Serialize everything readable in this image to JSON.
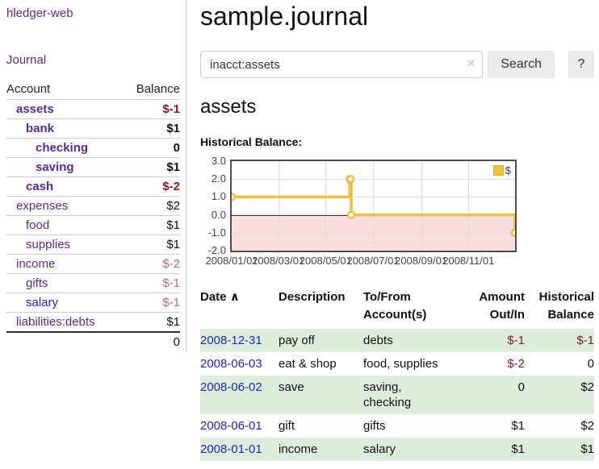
{
  "colors": {
    "accent_purple": "#522e91",
    "link_blue": "#2323cc",
    "negative_strong": "#8b1a1a",
    "negative_muted": "#b46f6f",
    "register_negative": "#7f1f1f",
    "row_green": "#ddeedd",
    "series_gold": "#edc240",
    "zero_line_red": "#8b0000",
    "negative_area_pink": "#fbdede"
  },
  "sidebar": {
    "app_title": "hledger-web",
    "journal_label": "Journal",
    "accounts_table": {
      "headers": {
        "account": "Account",
        "balance": "Balance"
      },
      "rows": [
        {
          "label": "assets",
          "level": 1,
          "bold": true,
          "balance": "$-1",
          "balance_class": "neg"
        },
        {
          "label": "bank",
          "level": 2,
          "bold": true,
          "balance": "$1",
          "balance_class": ""
        },
        {
          "label": "checking",
          "level": 3,
          "bold": true,
          "balance": "0",
          "balance_class": ""
        },
        {
          "label": "saving",
          "level": 3,
          "bold": true,
          "balance": "$1",
          "balance_class": ""
        },
        {
          "label": "cash",
          "level": 2,
          "bold": true,
          "balance": "$-2",
          "balance_class": "neg"
        },
        {
          "label": "expenses",
          "level": 1,
          "bold": false,
          "balance": "$2",
          "balance_class": ""
        },
        {
          "label": "food",
          "level": 2,
          "bold": false,
          "balance": "$1",
          "balance_class": ""
        },
        {
          "label": "supplies",
          "level": 2,
          "bold": false,
          "balance": "$1",
          "balance_class": ""
        },
        {
          "label": "income",
          "level": 1,
          "bold": false,
          "balance": "$-2",
          "balance_class": "muted"
        },
        {
          "label": "gifts",
          "level": 2,
          "bold": false,
          "balance": "$-1",
          "balance_class": "muted"
        },
        {
          "label": "salary",
          "level": 2,
          "bold": false,
          "balance": "$-1",
          "balance_class": "muted",
          "link_color": "blue"
        },
        {
          "label": "liabilities:debts",
          "level": 1,
          "bold": false,
          "balance": "$1",
          "balance_class": ""
        }
      ],
      "total": "0"
    }
  },
  "main": {
    "title": "sample.journal",
    "search": {
      "value": "inacct:assets",
      "clear_icon": "×",
      "button_label": "Search",
      "help_label": "?"
    },
    "account_heading": "assets",
    "chart_label": "Historical Balance:",
    "register_table": {
      "headers": {
        "date": "Date",
        "sort_icon": "∧",
        "description": "Description",
        "accounts": "To/From\nAccount(s)",
        "amount": "Amount\nOut/In",
        "balance": "Historical\nBalance"
      },
      "rows": [
        {
          "date": "2008-12-31",
          "description": "pay off",
          "accounts": "debts",
          "amount": "$-1",
          "balance": "$-1",
          "green": true
        },
        {
          "date": "2008-06-03",
          "description": "eat & shop",
          "accounts": "food, supplies",
          "amount": "$-2",
          "balance": "0",
          "green": false
        },
        {
          "date": "2008-06-02",
          "description": "save",
          "accounts": "saving,\nchecking",
          "amount": "0",
          "balance": "$2",
          "green": true
        },
        {
          "date": "2008-06-01",
          "description": "gift",
          "accounts": "gifts",
          "amount": "$1",
          "balance": "$2",
          "green": false
        },
        {
          "date": "2008-01-01",
          "description": "income",
          "accounts": "salary",
          "amount": "$1",
          "balance": "$1",
          "green": true
        }
      ]
    }
  },
  "chart_data": {
    "type": "line",
    "style": "step",
    "title": "Historical Balance",
    "legend": {
      "label": "$",
      "position": "top-right"
    },
    "series": [
      {
        "name": "$",
        "color": "#edc240",
        "points": [
          {
            "date": "2008-01-01",
            "day": 0,
            "value": 1
          },
          {
            "date": "2008-06-01",
            "day": 152,
            "value": 2
          },
          {
            "date": "2008-06-02",
            "day": 153,
            "value": 2
          },
          {
            "date": "2008-06-03",
            "day": 154,
            "value": 0
          },
          {
            "date": "2008-12-31",
            "day": 365,
            "value": -1
          }
        ]
      }
    ],
    "x_range_days": 365,
    "x_ticks": [
      {
        "label": "2008/01/01",
        "day": 0
      },
      {
        "label": "2008/03/01",
        "day": 60
      },
      {
        "label": "2008/05/01",
        "day": 121
      },
      {
        "label": "2008/07/01",
        "day": 182
      },
      {
        "label": "2008/09/01",
        "day": 244
      },
      {
        "label": "2008/11/01",
        "day": 305
      }
    ],
    "y_ticks": [
      {
        "label": "3.0",
        "value": 3
      },
      {
        "label": "2.0",
        "value": 2
      },
      {
        "label": "1.0",
        "value": 1
      },
      {
        "label": "0.0",
        "value": 0
      },
      {
        "label": "-1.0",
        "value": -1
      },
      {
        "label": "-2.0",
        "value": -2
      }
    ],
    "ylim": [
      -2,
      3
    ],
    "grid": true
  }
}
